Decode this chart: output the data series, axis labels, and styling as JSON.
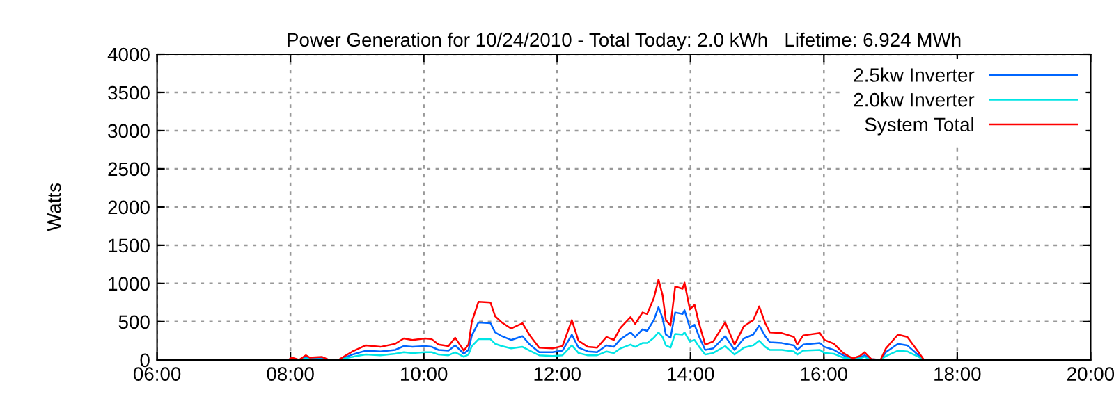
{
  "chart_data": {
    "type": "line",
    "title": "Power Generation for 10/24/2010 - Total Today: 2.0 kWh   Lifetime: 6.924 MWh",
    "ylabel": "Watts",
    "x": [
      7.97,
      8.02,
      8.13,
      8.23,
      8.29,
      8.47,
      8.58,
      8.72,
      8.93,
      9.13,
      9.35,
      9.57,
      9.7,
      9.83,
      10.02,
      10.12,
      10.22,
      10.37,
      10.47,
      10.6,
      10.67,
      10.72,
      10.82,
      11.0,
      11.07,
      11.17,
      11.31,
      11.48,
      11.59,
      11.73,
      11.93,
      12.08,
      12.22,
      12.32,
      12.46,
      12.6,
      12.74,
      12.85,
      12.95,
      13.1,
      13.17,
      13.28,
      13.35,
      13.45,
      13.52,
      13.58,
      13.63,
      13.7,
      13.77,
      13.88,
      13.91,
      13.99,
      14.06,
      14.13,
      14.22,
      14.34,
      14.52,
      14.66,
      14.8,
      14.94,
      15.03,
      15.12,
      15.19,
      15.37,
      15.55,
      15.6,
      15.69,
      15.94,
      16.01,
      16.15,
      16.29,
      16.43,
      16.54,
      16.61,
      16.71,
      16.85,
      16.93,
      17.11,
      17.25,
      17.42,
      17.5
    ],
    "series": [
      {
        "name": "2.5kw Inverter",
        "color": "#0066ff",
        "values": [
          0,
          20,
          0,
          40,
          20,
          30,
          0,
          0,
          70,
          120,
          110,
          130,
          180,
          170,
          180,
          170,
          130,
          120,
          190,
          80,
          130,
          320,
          490,
          480,
          360,
          310,
          260,
          310,
          200,
          100,
          100,
          120,
          330,
          160,
          110,
          100,
          190,
          170,
          270,
          360,
          300,
          400,
          380,
          520,
          690,
          550,
          330,
          290,
          620,
          600,
          650,
          420,
          460,
          300,
          130,
          150,
          310,
          130,
          280,
          330,
          450,
          310,
          230,
          220,
          190,
          130,
          200,
          220,
          170,
          130,
          60,
          10,
          30,
          60,
          10,
          0,
          100,
          210,
          190,
          60,
          0
        ]
      },
      {
        "name": "2.0kw Inverter",
        "color": "#00e5e5",
        "values": [
          0,
          10,
          0,
          20,
          10,
          10,
          0,
          0,
          40,
          70,
          60,
          80,
          100,
          90,
          100,
          100,
          70,
          60,
          100,
          40,
          70,
          180,
          270,
          270,
          210,
          180,
          150,
          170,
          120,
          60,
          50,
          60,
          190,
          90,
          60,
          60,
          110,
          90,
          150,
          200,
          170,
          220,
          220,
          290,
          360,
          300,
          190,
          160,
          340,
          330,
          360,
          240,
          260,
          170,
          70,
          90,
          180,
          70,
          160,
          190,
          250,
          170,
          130,
          130,
          110,
          70,
          120,
          130,
          90,
          80,
          30,
          10,
          20,
          40,
          0,
          0,
          50,
          120,
          110,
          40,
          0
        ]
      },
      {
        "name": "System Total",
        "color": "#ff0000",
        "values": [
          0,
          30,
          0,
          60,
          30,
          40,
          0,
          0,
          110,
          190,
          170,
          210,
          280,
          260,
          280,
          270,
          200,
          180,
          290,
          120,
          200,
          500,
          760,
          750,
          570,
          490,
          410,
          480,
          320,
          160,
          150,
          180,
          520,
          250,
          170,
          160,
          300,
          260,
          420,
          560,
          470,
          620,
          600,
          810,
          1050,
          850,
          520,
          450,
          960,
          930,
          1010,
          660,
          720,
          470,
          200,
          240,
          490,
          200,
          440,
          520,
          700,
          480,
          360,
          350,
          300,
          200,
          320,
          350,
          260,
          210,
          90,
          20,
          50,
          100,
          10,
          0,
          150,
          330,
          300,
          100,
          0
        ]
      }
    ],
    "xlim": [
      6,
      20
    ],
    "xticks": [
      {
        "value": 6,
        "label": "06:00"
      },
      {
        "value": 8,
        "label": "08:00"
      },
      {
        "value": 10,
        "label": "10:00"
      },
      {
        "value": 12,
        "label": "12:00"
      },
      {
        "value": 14,
        "label": "14:00"
      },
      {
        "value": 16,
        "label": "16:00"
      },
      {
        "value": 18,
        "label": "18:00"
      },
      {
        "value": 20,
        "label": "20:00"
      }
    ],
    "ylim": [
      0,
      4000
    ],
    "yticks": [
      0,
      500,
      1000,
      1500,
      2000,
      2500,
      3000,
      3500,
      4000
    ],
    "grid": true,
    "legend": "top right",
    "line_style": "solid",
    "marker": "none"
  }
}
